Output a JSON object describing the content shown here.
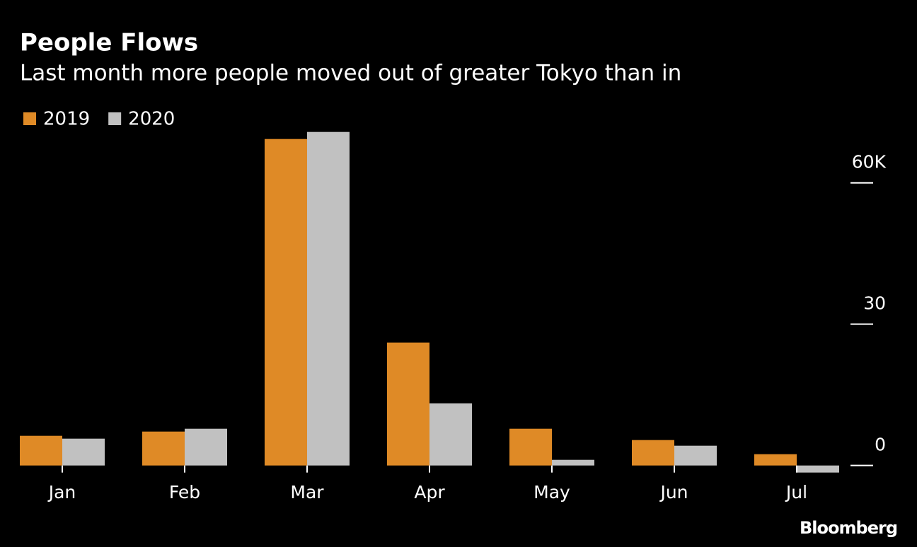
{
  "chart_data": {
    "type": "bar",
    "title": "People Flows",
    "subtitle": "Last month more people moved out of greater Tokyo than in",
    "source": "Bloomberg",
    "categories": [
      "Jan",
      "Feb",
      "Mar",
      "Apr",
      "May",
      "Jun",
      "Jul"
    ],
    "series": [
      {
        "name": "2019",
        "color": "#df8a26",
        "values": [
          6.3,
          7.2,
          69.3,
          26.1,
          7.8,
          5.4,
          2.4
        ]
      },
      {
        "name": "2020",
        "color": "#c1c1c1",
        "values": [
          5.7,
          7.8,
          70.8,
          13.2,
          1.2,
          4.2,
          -1.5
        ]
      }
    ],
    "ylim": [
      -2,
      72
    ],
    "yticks": [
      0,
      30,
      {
        "value": 60,
        "label": "60K"
      }
    ],
    "legend": "top-left"
  }
}
